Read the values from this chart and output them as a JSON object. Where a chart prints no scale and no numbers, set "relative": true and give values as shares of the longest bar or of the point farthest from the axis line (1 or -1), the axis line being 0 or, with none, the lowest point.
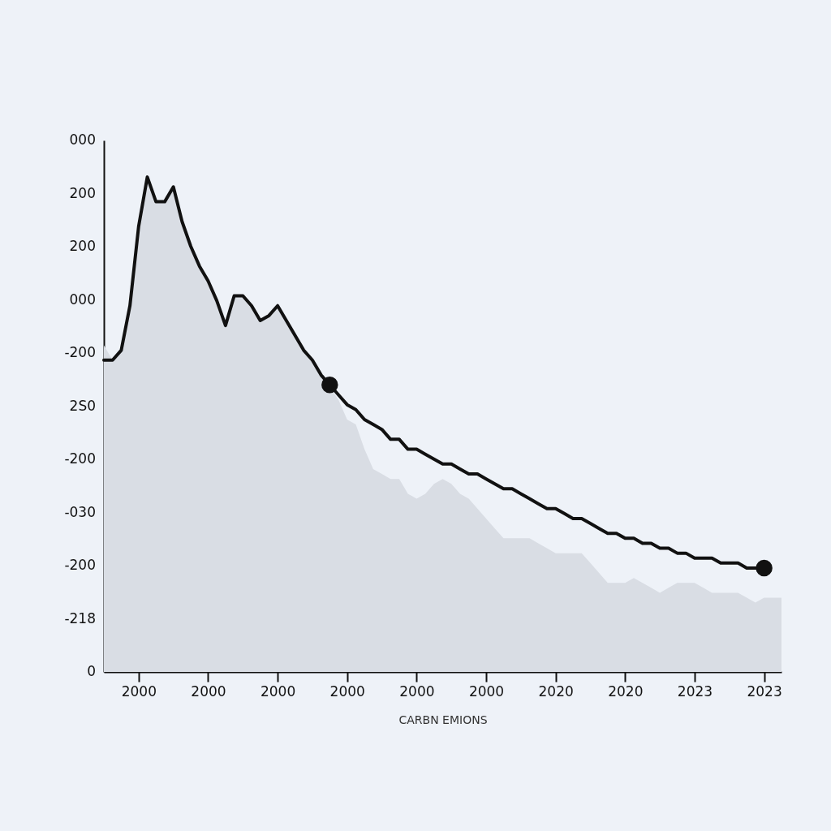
{
  "chart_data": {
    "type": "line",
    "xlabel": "CARBN EMIONS",
    "relative": true,
    "grid": false,
    "categories": [
      null,
      null,
      null,
      null,
      "2000",
      null,
      null,
      null,
      null,
      null,
      null,
      null,
      "2000",
      null,
      null,
      null,
      null,
      null,
      null,
      null,
      "2000",
      null,
      null,
      null,
      null,
      null,
      null,
      null,
      "2000",
      null,
      null,
      null,
      null,
      null,
      null,
      null,
      "2000",
      null,
      null,
      null,
      null,
      null,
      null,
      null,
      "2000",
      null,
      null,
      null,
      null,
      null,
      null,
      null,
      "2020",
      null,
      null,
      null,
      null,
      null,
      null,
      null,
      "2020",
      null,
      null,
      null,
      null,
      null,
      null,
      null,
      "2023",
      null,
      null,
      null,
      null,
      null,
      null,
      null,
      "2023",
      null,
      null
    ],
    "annotations": [
      "000",
      "200",
      "200",
      "000",
      "-200",
      "2S0",
      "-200",
      "-030",
      "-200",
      "-218",
      "0"
    ],
    "series": [
      {
        "type": "area",
        "color": "#d9dde4",
        "values": [
          0.66,
          0.63,
          0.65,
          0.74,
          0.9,
          1.0,
          0.95,
          0.95,
          0.98,
          0.91,
          0.86,
          0.82,
          0.79,
          0.75,
          0.7,
          0.76,
          0.76,
          0.74,
          0.71,
          0.72,
          0.74,
          0.71,
          0.68,
          0.65,
          0.63,
          0.6,
          null,
          0.55,
          0.51,
          0.5,
          0.45,
          0.41,
          0.4,
          0.39,
          0.39,
          0.36,
          0.35,
          0.36,
          0.38,
          0.39,
          0.38,
          0.36,
          0.35,
          0.33,
          0.31,
          0.29,
          0.27,
          0.27,
          0.27,
          0.27,
          0.26,
          0.25,
          0.24,
          0.24,
          0.24,
          0.24,
          0.22,
          0.2,
          0.18,
          0.18,
          0.18,
          0.19,
          0.18,
          0.17,
          0.16,
          0.17,
          0.18,
          0.18,
          0.18,
          0.17,
          0.16,
          0.16,
          0.16,
          0.16,
          0.15,
          0.14,
          0.15,
          0.15,
          0.15
        ]
      },
      {
        "color": "#111111",
        "marker": "none",
        "values": [
          0.63,
          0.63,
          0.65,
          0.74,
          0.9,
          1.0,
          0.95,
          0.95,
          0.98,
          0.91,
          0.86,
          0.82,
          0.79,
          0.75,
          0.7,
          0.76,
          0.76,
          0.74,
          0.71,
          0.72,
          0.74,
          0.71,
          0.68,
          0.65,
          0.63,
          0.6,
          0.58,
          0.56,
          0.54,
          0.53,
          0.51,
          0.5,
          0.49,
          0.47,
          0.47,
          0.45,
          0.45,
          0.44,
          0.43,
          0.42,
          0.42,
          0.41,
          0.4,
          0.4,
          0.39,
          0.38,
          0.37,
          0.37,
          0.36,
          0.35,
          0.34,
          0.33,
          0.33,
          0.32,
          0.31,
          0.31,
          0.3,
          0.29,
          0.28,
          0.28,
          0.27,
          0.27,
          0.26,
          0.26,
          0.25,
          0.25,
          0.24,
          0.24,
          0.23,
          0.23,
          0.23,
          0.22,
          0.22,
          0.22,
          0.21,
          0.21,
          0.21,
          null,
          null
        ]
      },
      {
        "type": "scatter",
        "color": "#111111",
        "marker": "circle",
        "values": [
          null,
          null,
          null,
          null,
          null,
          null,
          null,
          null,
          null,
          null,
          null,
          null,
          null,
          null,
          null,
          null,
          null,
          null,
          null,
          null,
          null,
          null,
          null,
          null,
          null,
          null,
          0.58,
          null,
          null,
          null,
          null,
          null,
          null,
          null,
          null,
          null,
          null,
          null,
          null,
          null,
          null,
          null,
          null,
          null,
          null,
          null,
          null,
          null,
          null,
          null,
          null,
          null,
          null,
          null,
          null,
          null,
          null,
          null,
          null,
          null,
          null,
          null,
          null,
          null,
          null,
          null,
          null,
          null,
          null,
          null,
          null,
          null,
          null,
          null,
          null,
          null,
          0.21,
          null,
          null
        ]
      }
    ]
  }
}
